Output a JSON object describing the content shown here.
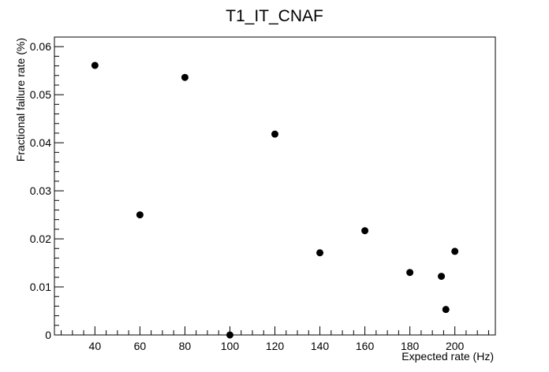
{
  "chart_data": {
    "type": "scatter",
    "title": "T1_IT_CNAF",
    "xlabel": "Expected rate (Hz)",
    "ylabel": "Fractional failure rate (%)",
    "xlim": [
      22,
      218
    ],
    "ylim": [
      0,
      0.062
    ],
    "x_ticks": [
      40,
      60,
      80,
      100,
      120,
      140,
      160,
      180,
      200
    ],
    "x_tick_labels": [
      "40",
      "60",
      "80",
      "100",
      "120",
      "140",
      "160",
      "180",
      "200"
    ],
    "y_ticks": [
      0,
      0.01,
      0.02,
      0.03,
      0.04,
      0.05,
      0.06
    ],
    "y_tick_labels": [
      "0",
      "0.01",
      "0.02",
      "0.03",
      "0.04",
      "0.05",
      "0.06"
    ],
    "grid": false,
    "legend": "none",
    "marker_color": "#000000",
    "points": [
      {
        "x": 40,
        "y": 0.0561
      },
      {
        "x": 60,
        "y": 0.025
      },
      {
        "x": 80,
        "y": 0.0536
      },
      {
        "x": 100,
        "y": 0.0
      },
      {
        "x": 120,
        "y": 0.0418
      },
      {
        "x": 140,
        "y": 0.0171
      },
      {
        "x": 160,
        "y": 0.0217
      },
      {
        "x": 180,
        "y": 0.013
      },
      {
        "x": 194,
        "y": 0.0122
      },
      {
        "x": 196,
        "y": 0.0053
      },
      {
        "x": 200,
        "y": 0.0174
      }
    ]
  }
}
